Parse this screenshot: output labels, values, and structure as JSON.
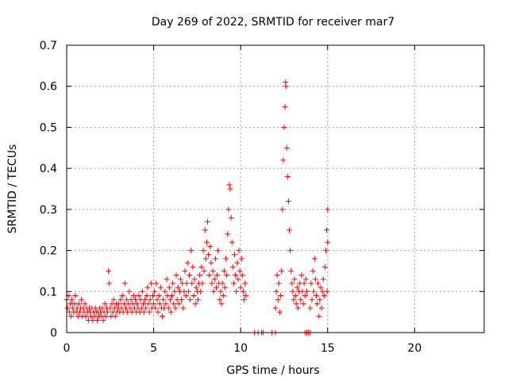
{
  "chart_data": {
    "type": "scatter",
    "title": "Day 269 of 2022, SRMTID for receiver mar7",
    "xlabel": "GPS time / hours",
    "ylabel": "SRMTID / TECUs",
    "xlim": [
      0,
      24
    ],
    "ylim": [
      0,
      0.7
    ],
    "x_ticks": [
      0,
      5,
      10,
      15,
      20
    ],
    "y_ticks": [
      0,
      0.1,
      0.2,
      0.3,
      0.4,
      0.5,
      0.6,
      0.7
    ],
    "x_tick_labels": [
      "0",
      "5",
      "10",
      "15",
      "20"
    ],
    "y_tick_labels": [
      "0",
      "0.1",
      "0.2",
      "0.3",
      "0.4",
      "0.5",
      "0.6",
      "0.7"
    ],
    "grid": true,
    "marker": "+",
    "color": "#ff0000",
    "series": [
      {
        "name": "SRMTID",
        "points": [
          [
            0.0,
            0.08
          ],
          [
            0.05,
            0.06
          ],
          [
            0.1,
            0.09
          ],
          [
            0.15,
            0.05
          ],
          [
            0.2,
            0.07
          ],
          [
            0.25,
            0.04
          ],
          [
            0.3,
            0.08
          ],
          [
            0.35,
            0.06
          ],
          [
            0.4,
            0.05
          ],
          [
            0.45,
            0.07
          ],
          [
            0.5,
            0.09
          ],
          [
            0.55,
            0.05
          ],
          [
            0.6,
            0.06
          ],
          [
            0.65,
            0.04
          ],
          [
            0.7,
            0.07
          ],
          [
            0.75,
            0.05
          ],
          [
            0.8,
            0.06
          ],
          [
            0.85,
            0.08
          ],
          [
            0.9,
            0.04
          ],
          [
            0.95,
            0.06
          ],
          [
            1.0,
            0.05
          ],
          [
            1.05,
            0.07
          ],
          [
            1.1,
            0.04
          ],
          [
            1.15,
            0.06
          ],
          [
            1.2,
            0.05
          ],
          [
            1.25,
            0.03
          ],
          [
            1.3,
            0.06
          ],
          [
            1.35,
            0.05
          ],
          [
            1.4,
            0.04
          ],
          [
            1.45,
            0.06
          ],
          [
            1.5,
            0.03
          ],
          [
            1.55,
            0.05
          ],
          [
            1.6,
            0.04
          ],
          [
            1.65,
            0.06
          ],
          [
            1.7,
            0.05
          ],
          [
            1.75,
            0.03
          ],
          [
            1.8,
            0.05
          ],
          [
            1.85,
            0.04
          ],
          [
            1.9,
            0.06
          ],
          [
            1.95,
            0.05
          ],
          [
            2.0,
            0.04
          ],
          [
            2.05,
            0.06
          ],
          [
            2.1,
            0.03
          ],
          [
            2.15,
            0.05
          ],
          [
            2.2,
            0.07
          ],
          [
            2.25,
            0.04
          ],
          [
            2.3,
            0.06
          ],
          [
            2.35,
            0.05
          ],
          [
            2.4,
            0.15
          ],
          [
            2.45,
            0.12
          ],
          [
            2.5,
            0.06
          ],
          [
            2.55,
            0.04
          ],
          [
            2.6,
            0.07
          ],
          [
            2.65,
            0.05
          ],
          [
            2.7,
            0.08
          ],
          [
            2.75,
            0.06
          ],
          [
            2.8,
            0.04
          ],
          [
            2.85,
            0.07
          ],
          [
            2.9,
            0.05
          ],
          [
            2.95,
            0.06
          ],
          [
            3.0,
            0.07
          ],
          [
            3.05,
            0.05
          ],
          [
            3.1,
            0.08
          ],
          [
            3.15,
            0.06
          ],
          [
            3.2,
            0.09
          ],
          [
            3.25,
            0.05
          ],
          [
            3.3,
            0.07
          ],
          [
            3.35,
            0.12
          ],
          [
            3.4,
            0.06
          ],
          [
            3.45,
            0.08
          ],
          [
            3.5,
            0.05
          ],
          [
            3.55,
            0.07
          ],
          [
            3.6,
            0.1
          ],
          [
            3.65,
            0.06
          ],
          [
            3.7,
            0.08
          ],
          [
            3.75,
            0.05
          ],
          [
            3.8,
            0.07
          ],
          [
            3.85,
            0.09
          ],
          [
            3.9,
            0.06
          ],
          [
            3.95,
            0.08
          ],
          [
            4.0,
            0.05
          ],
          [
            4.05,
            0.07
          ],
          [
            4.1,
            0.06
          ],
          [
            4.15,
            0.09
          ],
          [
            4.2,
            0.05
          ],
          [
            4.25,
            0.08
          ],
          [
            4.3,
            0.06
          ],
          [
            4.35,
            0.1
          ],
          [
            4.4,
            0.07
          ],
          [
            4.45,
            0.05
          ],
          [
            4.5,
            0.08
          ],
          [
            4.55,
            0.06
          ],
          [
            4.6,
            0.09
          ],
          [
            4.65,
            0.11
          ],
          [
            4.7,
            0.07
          ],
          [
            4.75,
            0.05
          ],
          [
            4.8,
            0.08
          ],
          [
            4.85,
            0.12
          ],
          [
            4.9,
            0.06
          ],
          [
            4.95,
            0.09
          ],
          [
            5.0,
            0.07
          ],
          [
            5.05,
            0.1
          ],
          [
            5.1,
            0.06
          ],
          [
            5.15,
            0.12
          ],
          [
            5.2,
            0.08
          ],
          [
            5.25,
            0.05
          ],
          [
            5.3,
            0.09
          ],
          [
            5.35,
            0.07
          ],
          [
            5.4,
            0.11
          ],
          [
            5.45,
            0.06
          ],
          [
            5.5,
            0.04
          ],
          [
            5.55,
            0.08
          ],
          [
            5.6,
            0.06
          ],
          [
            5.65,
            0.1
          ],
          [
            5.7,
            0.07
          ],
          [
            5.75,
            0.13
          ],
          [
            5.8,
            0.09
          ],
          [
            5.85,
            0.06
          ],
          [
            5.9,
            0.11
          ],
          [
            5.95,
            0.08
          ],
          [
            6.0,
            0.05
          ],
          [
            6.05,
            0.09
          ],
          [
            6.1,
            0.12
          ],
          [
            6.15,
            0.07
          ],
          [
            6.2,
            0.1
          ],
          [
            6.25,
            0.06
          ],
          [
            6.3,
            0.14
          ],
          [
            6.35,
            0.08
          ],
          [
            6.4,
            0.11
          ],
          [
            6.45,
            0.07
          ],
          [
            6.5,
            0.1
          ],
          [
            6.55,
            0.13
          ],
          [
            6.6,
            0.08
          ],
          [
            6.65,
            0.12
          ],
          [
            6.7,
            0.06
          ],
          [
            6.75,
            0.1
          ],
          [
            6.8,
            0.15
          ],
          [
            6.85,
            0.09
          ],
          [
            6.9,
            0.12
          ],
          [
            6.95,
            0.17
          ],
          [
            7.0,
            0.1
          ],
          [
            7.05,
            0.14
          ],
          [
            7.1,
            0.08
          ],
          [
            7.15,
            0.2
          ],
          [
            7.2,
            0.12
          ],
          [
            7.25,
            0.16
          ],
          [
            7.3,
            0.09
          ],
          [
            7.35,
            0.13
          ],
          [
            7.4,
            0.07
          ],
          [
            7.45,
            0.11
          ],
          [
            7.5,
            0.1
          ],
          [
            7.55,
            0.08
          ],
          [
            7.6,
            0.12
          ],
          [
            7.65,
            0.14
          ],
          [
            7.7,
            0.1
          ],
          [
            7.75,
            0.16
          ],
          [
            7.8,
            0.12
          ],
          [
            7.85,
            0.2
          ],
          [
            7.9,
            0.15
          ],
          [
            7.95,
            0.25
          ],
          [
            8.0,
            0.18
          ],
          [
            8.05,
            0.22
          ],
          [
            8.1,
            0.27
          ],
          [
            8.15,
            0.19
          ],
          [
            8.2,
            0.14
          ],
          [
            8.25,
            0.21
          ],
          [
            8.3,
            0.17
          ],
          [
            8.35,
            0.12
          ],
          [
            8.4,
            0.15
          ],
          [
            8.45,
            0.1
          ],
          [
            8.5,
            0.13
          ],
          [
            8.55,
            0.18
          ],
          [
            8.6,
            0.11
          ],
          [
            8.65,
            0.14
          ],
          [
            8.7,
            0.2
          ],
          [
            8.75,
            0.12
          ],
          [
            8.8,
            0.08
          ],
          [
            8.85,
            0.1
          ],
          [
            8.9,
            0.07
          ],
          [
            8.95,
            0.12
          ],
          [
            9.0,
            0.09
          ],
          [
            9.05,
            0.15
          ],
          [
            9.1,
            0.11
          ],
          [
            9.15,
            0.18
          ],
          [
            9.2,
            0.14
          ],
          [
            9.25,
            0.24
          ],
          [
            9.3,
            0.3
          ],
          [
            9.35,
            0.36
          ],
          [
            9.4,
            0.35
          ],
          [
            9.45,
            0.28
          ],
          [
            9.5,
            0.22
          ],
          [
            9.55,
            0.16
          ],
          [
            9.6,
            0.12
          ],
          [
            9.65,
            0.19
          ],
          [
            9.7,
            0.14
          ],
          [
            9.75,
            0.1
          ],
          [
            9.8,
            0.17
          ],
          [
            9.85,
            0.13
          ],
          [
            9.9,
            0.2
          ],
          [
            9.95,
            0.15
          ],
          [
            10.0,
            0.11
          ],
          [
            10.05,
            0.18
          ],
          [
            10.1,
            0.14
          ],
          [
            10.15,
            0.1
          ],
          [
            10.2,
            0.08
          ],
          [
            10.25,
            0.12
          ],
          [
            10.3,
            0.09
          ],
          [
            10.8,
            0.0
          ],
          [
            11.0,
            0.0
          ],
          [
            11.2,
            0.0
          ],
          [
            11.3,
            0.0
          ],
          [
            11.8,
            0.0
          ],
          [
            12.0,
            0.0
          ],
          [
            12.0,
            0.06
          ],
          [
            12.05,
            0.1
          ],
          [
            12.1,
            0.14
          ],
          [
            12.15,
            0.08
          ],
          [
            12.2,
            0.12
          ],
          [
            12.25,
            0.05
          ],
          [
            12.3,
            0.09
          ],
          [
            12.35,
            0.15
          ],
          [
            12.4,
            0.3
          ],
          [
            12.45,
            0.42
          ],
          [
            12.5,
            0.5
          ],
          [
            12.55,
            0.55
          ],
          [
            12.58,
            0.61
          ],
          [
            12.6,
            0.6
          ],
          [
            12.65,
            0.45
          ],
          [
            12.7,
            0.38
          ],
          [
            12.75,
            0.32
          ],
          [
            12.8,
            0.25
          ],
          [
            12.85,
            0.2
          ],
          [
            12.9,
            0.15
          ],
          [
            12.95,
            0.12
          ],
          [
            13.0,
            0.1
          ],
          [
            13.05,
            0.08
          ],
          [
            13.1,
            0.13
          ],
          [
            13.15,
            0.09
          ],
          [
            13.2,
            0.07
          ],
          [
            13.25,
            0.11
          ],
          [
            13.3,
            0.06
          ],
          [
            13.35,
            0.1
          ],
          [
            13.4,
            0.12
          ],
          [
            13.45,
            0.08
          ],
          [
            13.5,
            0.14
          ],
          [
            13.55,
            0.1
          ],
          [
            13.6,
            0.07
          ],
          [
            13.65,
            0.12
          ],
          [
            13.7,
            0.09
          ],
          [
            13.75,
            0.13
          ],
          [
            13.8,
            0.1
          ],
          [
            13.7,
            0.0
          ],
          [
            13.8,
            0.0
          ],
          [
            13.9,
            0.0
          ],
          [
            14.0,
            0.0
          ],
          [
            14.0,
            0.06
          ],
          [
            14.05,
            0.12
          ],
          [
            14.1,
            0.08
          ],
          [
            14.15,
            0.15
          ],
          [
            14.2,
            0.1
          ],
          [
            14.25,
            0.18
          ],
          [
            14.3,
            0.13
          ],
          [
            14.35,
            0.09
          ],
          [
            14.4,
            0.07
          ],
          [
            14.45,
            0.12
          ],
          [
            14.5,
            0.04
          ],
          [
            14.55,
            0.08
          ],
          [
            14.6,
            0.11
          ],
          [
            14.65,
            0.06
          ],
          [
            14.7,
            0.1
          ],
          [
            14.75,
            0.13
          ],
          [
            14.8,
            0.09
          ],
          [
            14.85,
            0.16
          ],
          [
            14.9,
            0.2
          ],
          [
            14.95,
            0.25
          ],
          [
            15.0,
            0.3
          ],
          [
            15.0,
            0.22
          ],
          [
            14.97,
            0.1
          ]
        ]
      }
    ]
  }
}
